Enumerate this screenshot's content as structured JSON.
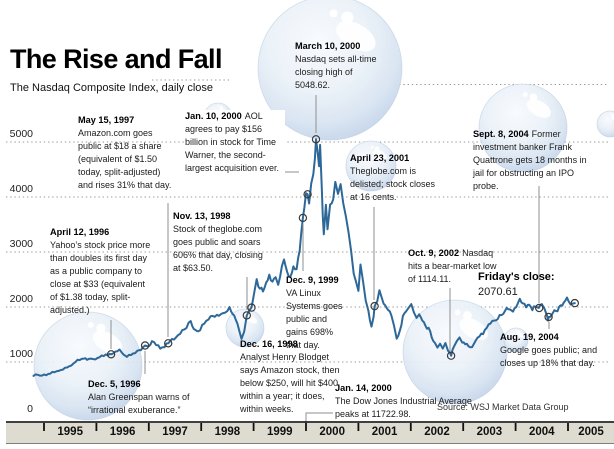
{
  "header": {
    "title": "The Rise and Fall",
    "subtitle": "The Nasdaq Composite Index, daily close"
  },
  "source": "Source: WSJ Market Data Group",
  "colors": {
    "line": "#2E6898",
    "band_bg": "#DEDBD0",
    "grid": "#999999",
    "leader": "#8f8f8f",
    "marker_stroke": "#3a3a3a",
    "bubble_edge": "#B2C5DF"
  },
  "chart_data": {
    "type": "line",
    "title": "The Rise and Fall",
    "subtitle": "The Nasdaq Composite Index, daily close",
    "xlabel": "",
    "ylabel": "",
    "ylim": [
      0,
      5000
    ],
    "grid": "dotted horizontal",
    "y_ticks": [
      0,
      1000,
      2000,
      3000,
      4000,
      5000
    ],
    "x_ticks": [
      "1995",
      "1996",
      "1997",
      "1998",
      "1999",
      "2000",
      "2001",
      "2002",
      "2003",
      "2004",
      "2005"
    ],
    "series": [
      {
        "name": "Nasdaq Composite daily close",
        "points": [
          [
            1994.8,
            748
          ],
          [
            1994.88,
            768
          ],
          [
            1994.96,
            752
          ],
          [
            1995.04,
            760
          ],
          [
            1995.12,
            790
          ],
          [
            1995.2,
            812
          ],
          [
            1995.28,
            838
          ],
          [
            1995.36,
            862
          ],
          [
            1995.44,
            900
          ],
          [
            1995.52,
            935
          ],
          [
            1995.6,
            998
          ],
          [
            1995.68,
            1035
          ],
          [
            1995.76,
            1062
          ],
          [
            1995.82,
            1040
          ],
          [
            1995.9,
            1062
          ],
          [
            1995.98,
            1048
          ],
          [
            1996.06,
            1085
          ],
          [
            1996.14,
            1108
          ],
          [
            1996.22,
            1118
          ],
          [
            1996.28,
            1140
          ],
          [
            1996.36,
            1190
          ],
          [
            1996.44,
            1228
          ],
          [
            1996.52,
            1135
          ],
          [
            1996.58,
            1092
          ],
          [
            1996.66,
            1128
          ],
          [
            1996.74,
            1162
          ],
          [
            1996.82,
            1218
          ],
          [
            1996.88,
            1262
          ],
          [
            1996.93,
            1300
          ],
          [
            1997.0,
            1288
          ],
          [
            1997.06,
            1378
          ],
          [
            1997.14,
            1308
          ],
          [
            1997.22,
            1242
          ],
          [
            1997.3,
            1268
          ],
          [
            1997.37,
            1340
          ],
          [
            1997.44,
            1418
          ],
          [
            1997.52,
            1448
          ],
          [
            1997.6,
            1512
          ],
          [
            1997.68,
            1592
          ],
          [
            1997.76,
            1712
          ],
          [
            1997.8,
            1745
          ],
          [
            1997.86,
            1598
          ],
          [
            1997.92,
            1562
          ],
          [
            1997.98,
            1578
          ],
          [
            1998.06,
            1698
          ],
          [
            1998.14,
            1772
          ],
          [
            1998.22,
            1838
          ],
          [
            1998.3,
            1858
          ],
          [
            1998.38,
            1872
          ],
          [
            1998.46,
            1898
          ],
          [
            1998.54,
            2000
          ],
          [
            1998.6,
            1872
          ],
          [
            1998.66,
            1768
          ],
          [
            1998.72,
            1592
          ],
          [
            1998.77,
            1420
          ],
          [
            1998.82,
            1552
          ],
          [
            1998.87,
            1847
          ],
          [
            1998.92,
            1942
          ],
          [
            1998.96,
            1990
          ],
          [
            1999.02,
            2298
          ],
          [
            1999.06,
            2508
          ],
          [
            1999.12,
            2332
          ],
          [
            1999.18,
            2282
          ],
          [
            1999.24,
            2448
          ],
          [
            1999.3,
            2588
          ],
          [
            1999.36,
            2462
          ],
          [
            1999.42,
            2542
          ],
          [
            1999.47,
            2404
          ],
          [
            1999.54,
            2742
          ],
          [
            1999.58,
            2864
          ],
          [
            1999.64,
            2642
          ],
          [
            1999.7,
            2548
          ],
          [
            1999.76,
            2738
          ],
          [
            1999.82,
            2688
          ],
          [
            1999.88,
            3028
          ],
          [
            1999.94,
            3620
          ],
          [
            2000.0,
            4069
          ],
          [
            2000.03,
            4050
          ],
          [
            2000.06,
            3882
          ],
          [
            2000.1,
            4244
          ],
          [
            2000.14,
            4412
          ],
          [
            2000.17,
            4696
          ],
          [
            2000.19,
            5048.62
          ],
          [
            2000.22,
            4834
          ],
          [
            2000.25,
            4558
          ],
          [
            2000.27,
            4948
          ],
          [
            2000.3,
            4206
          ],
          [
            2000.32,
            3644
          ],
          [
            2000.34,
            3321
          ],
          [
            2000.38,
            3858
          ],
          [
            2000.41,
            3412
          ],
          [
            2000.46,
            3862
          ],
          [
            2000.52,
            3958
          ],
          [
            2000.56,
            4274
          ],
          [
            2000.61,
            4056
          ],
          [
            2000.66,
            4234
          ],
          [
            2000.71,
            3892
          ],
          [
            2000.76,
            3656
          ],
          [
            2000.81,
            3374
          ],
          [
            2000.86,
            3022
          ],
          [
            2000.91,
            2608
          ],
          [
            2000.96,
            2442
          ],
          [
            2001.0,
            2292
          ],
          [
            2001.04,
            2772
          ],
          [
            2001.09,
            2462
          ],
          [
            2001.14,
            2118
          ],
          [
            2001.19,
            1932
          ],
          [
            2001.25,
            1644
          ],
          [
            2001.29,
            1822
          ],
          [
            2001.31,
            2016
          ],
          [
            2001.36,
            2108
          ],
          [
            2001.4,
            2306
          ],
          [
            2001.45,
            2152
          ],
          [
            2001.51,
            2032
          ],
          [
            2001.57,
            1942
          ],
          [
            2001.63,
            1846
          ],
          [
            2001.68,
            1662
          ],
          [
            2001.73,
            1423
          ],
          [
            2001.79,
            1568
          ],
          [
            2001.85,
            1838
          ],
          [
            2001.91,
            1922
          ],
          [
            2001.96,
            1988
          ],
          [
            2002.01,
            2052
          ],
          [
            2002.06,
            1902
          ],
          [
            2002.11,
            1802
          ],
          [
            2002.16,
            1868
          ],
          [
            2002.22,
            1752
          ],
          [
            2002.28,
            1658
          ],
          [
            2002.34,
            1622
          ],
          [
            2002.4,
            1442
          ],
          [
            2002.46,
            1348
          ],
          [
            2002.51,
            1262
          ],
          [
            2002.56,
            1332
          ],
          [
            2002.61,
            1244
          ],
          [
            2002.66,
            1346
          ],
          [
            2002.71,
            1206
          ],
          [
            2002.75,
            1164
          ],
          [
            2002.77,
            1114.11
          ],
          [
            2002.83,
            1292
          ],
          [
            2002.88,
            1382
          ],
          [
            2002.93,
            1448
          ],
          [
            2002.98,
            1352
          ],
          [
            2003.04,
            1322
          ],
          [
            2003.1,
            1288
          ],
          [
            2003.17,
            1271
          ],
          [
            2003.24,
            1392
          ],
          [
            2003.31,
            1464
          ],
          [
            2003.38,
            1508
          ],
          [
            2003.45,
            1622
          ],
          [
            2003.52,
            1698
          ],
          [
            2003.59,
            1752
          ],
          [
            2003.66,
            1782
          ],
          [
            2003.73,
            1852
          ],
          [
            2003.8,
            1932
          ],
          [
            2003.86,
            1958
          ],
          [
            2003.92,
            1938
          ],
          [
            2003.98,
            1978
          ],
          [
            2004.04,
            2062
          ],
          [
            2004.08,
            2150
          ],
          [
            2004.14,
            2066
          ],
          [
            2004.2,
            1994
          ],
          [
            2004.26,
            2042
          ],
          [
            2004.32,
            1942
          ],
          [
            2004.38,
            2006
          ],
          [
            2004.44,
            1982
          ],
          [
            2004.5,
            2052
          ],
          [
            2004.55,
            1972
          ],
          [
            2004.6,
            1842
          ],
          [
            2004.62,
            1752
          ],
          [
            2004.63,
            1819
          ],
          [
            2004.69,
            1860
          ],
          [
            2004.74,
            1942
          ],
          [
            2004.8,
            1922
          ],
          [
            2004.86,
            2032
          ],
          [
            2004.92,
            2082
          ],
          [
            2004.98,
            2172
          ],
          [
            2005.01,
            2108
          ],
          [
            2005.05,
            2046
          ],
          [
            2005.09,
            2062
          ],
          [
            2005.13,
            2070.61
          ]
        ]
      }
    ],
    "events": [
      {
        "label": "April 12, 1996",
        "x": 1996.28,
        "value": 1140
      },
      {
        "label": "Dec. 5, 1996",
        "x": 1996.93,
        "value": 1300
      },
      {
        "label": "May 15, 1997",
        "x": 1997.37,
        "value": 1340
      },
      {
        "label": "Nov. 13, 1998",
        "x": 1998.87,
        "value": 1847
      },
      {
        "label": "Dec. 16, 1998",
        "x": 1998.96,
        "value": 1990
      },
      {
        "label": "Dec. 9, 1999",
        "x": 1999.94,
        "value": 3620
      },
      {
        "label": "Jan. 10, 2000",
        "x": 2000.03,
        "value": 4050
      },
      {
        "label": "March 10, 2000",
        "x": 2000.19,
        "value": 5048.62
      },
      {
        "label": "April 23, 2001",
        "x": 2001.31,
        "value": 2016
      },
      {
        "label": "Oct. 9, 2002",
        "x": 2002.77,
        "value": 1114.11
      },
      {
        "label": "Aug. 19, 2004",
        "x": 2004.63,
        "value": 1819
      },
      {
        "label": "Sept. 8, 2004",
        "x": 2004.45,
        "value": 1982
      },
      {
        "label": "Friday's close",
        "x": 2005.13,
        "value": 2070.61
      }
    ]
  },
  "annotations": {
    "april_12_1996": {
      "date": "April 12, 1996",
      "text": "Yahoo’s stock price more than doubles its first day as a public company to close at $33 (equivalent of $1.38 today, split-adjusted.)"
    },
    "dec_5_1996": {
      "date": "Dec. 5, 1996",
      "text": "Alan Greenspan warns of “irrational exuberance.”"
    },
    "may_15_1997": {
      "date": "May 15, 1997",
      "text": "Amazon.com goes public at $18 a share (equivalent of $1.50 today, split-adjusted) and rises 31% that day."
    },
    "nov_13_1998": {
      "date": "Nov. 13, 1998",
      "text": "Stock of theglobe.com goes public and soars 606% that day, closing at $63.50."
    },
    "dec_16_1998": {
      "date": "Dec. 16, 1998",
      "text": "Analyst Henry Blodget says Amazon stock, then below $250, will hit $400 within a year; it does, within weeks."
    },
    "dec_9_1999": {
      "date": "Dec. 9, 1999",
      "text": "VA Linux Systems goes public and gains 698% that day."
    },
    "jan_10_2000": {
      "date": "Jan. 10, 2000",
      "text": "AOL agrees to pay $156 billion in stock for Time Warner, the second-largest acquisition ever."
    },
    "jan_14_2000": {
      "date": "Jan. 14, 2000",
      "text": "The Dow Jones Industrial Average peaks at 11722.98."
    },
    "march_10_2000": {
      "date": "March 10, 2000",
      "text": "Nasdaq sets all-time closing high of 5048.62."
    },
    "april_23_2001": {
      "date": "April 23, 2001",
      "text": "Theglobe.com is delisted; stock closes at 16 cents."
    },
    "oct_9_2002": {
      "date": "Oct. 9, 2002",
      "text": "Nasdaq hits a bear-market low of 1114.11."
    },
    "aug_19_2004": {
      "date": "Aug. 19, 2004",
      "text": "Google goes public; and closes up 18% that day."
    },
    "sept_8_2004": {
      "date": "Sept. 8, 2004",
      "text": "Former investment banker Frank Quattrone gets 18 months in jail for obstructing an IPO probe."
    },
    "fridays_close": {
      "date": "Friday's close:",
      "text": "2070.61"
    }
  }
}
